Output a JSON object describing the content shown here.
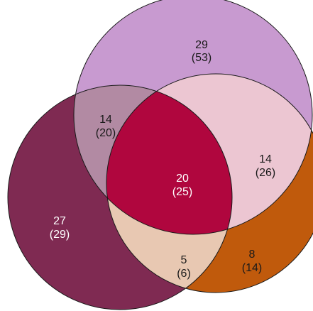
{
  "diagram": {
    "type": "venn-3",
    "regions": {
      "top_only": {
        "count": "29",
        "total": "(53)"
      },
      "left_top": {
        "count": "14",
        "total": "(20)"
      },
      "right_top": {
        "count": "14",
        "total": "(26)"
      },
      "center_all": {
        "count": "20",
        "total": "(25)"
      },
      "left_only": {
        "count": "27",
        "total": "(29)"
      },
      "left_bottom": {
        "count": "5",
        "total": "(6)"
      },
      "bottom_only": {
        "count": "8",
        "total": "(14)"
      }
    },
    "colors": {
      "top_only": "#c89ad0",
      "left_only": "#7f2a52",
      "bottom_only": "#c05a0c",
      "left_top": "#b28aa3",
      "right_top": "#ecc6d2",
      "left_bottom": "#e8c8b2",
      "center_all": "#b0063e",
      "outline": "#1a1a1a"
    }
  }
}
